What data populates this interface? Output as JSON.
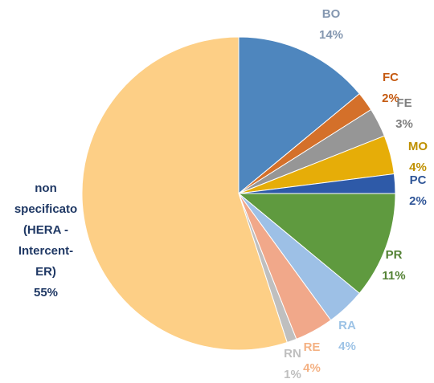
{
  "chart_data": {
    "type": "pie",
    "categories": [
      "BO",
      "FC",
      "FE",
      "MO",
      "PC",
      "PR",
      "RA",
      "RE",
      "RN",
      "non specificato (HERA - Intercent-ER)"
    ],
    "values": [
      14,
      2,
      3,
      4,
      2,
      11,
      4,
      4,
      1,
      55
    ],
    "value_labels": [
      "14%",
      "2%",
      "3%",
      "4%",
      "2%",
      "11%",
      "4%",
      "4%",
      "1%",
      "55%"
    ],
    "colors": [
      "#4e86be",
      "#d4702a",
      "#969696",
      "#e6ad08",
      "#2e5aa8",
      "#5f9a3f",
      "#9dc0e6",
      "#f1a88a",
      "#bfbfbf",
      "#fdcf86"
    ],
    "label_colors": [
      "#8497b0",
      "#c55a11",
      "#7f7f7f",
      "#bf9000",
      "#2f5597",
      "#548235",
      "#9dc3e6",
      "#f4b183",
      "#bfbfbf",
      "#1f3864"
    ]
  }
}
